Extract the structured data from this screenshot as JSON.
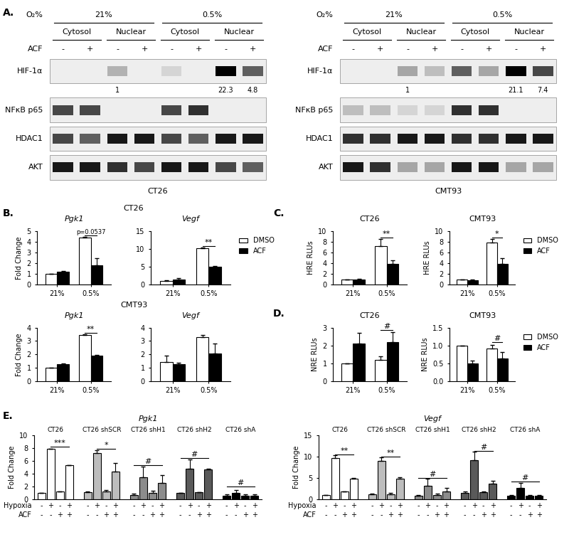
{
  "chart_data": [
    {
      "type": "western_blot",
      "panel": "A.",
      "header_label": "O₂%",
      "conditions": [
        "21%",
        "0.5%"
      ],
      "fractions": [
        "Cytosol",
        "Nuclear"
      ],
      "treatment_label": "ACF",
      "treatment_marks": [
        "-",
        "+"
      ],
      "rows": [
        {
          "name": "HIF-1α",
          "bands": [
            0,
            0,
            0.25,
            0,
            0.1,
            0,
            1.0,
            0.6
          ]
        },
        {
          "name": "NFκB p65",
          "bands": [
            0.7,
            0.7,
            0,
            0,
            0.7,
            0.8,
            0,
            0
          ]
        },
        {
          "name": "HDAC1",
          "bands": [
            0.7,
            0.6,
            0.9,
            0.9,
            0.7,
            0.6,
            0.9,
            0.9
          ]
        },
        {
          "name": "AKT",
          "bands": [
            0.9,
            0.9,
            0.8,
            0.7,
            0.9,
            0.9,
            0.7,
            0.6
          ]
        }
      ],
      "quantification": [
        null,
        null,
        1,
        null,
        null,
        null,
        22.3,
        4.8
      ],
      "cell_line": "CT26"
    },
    {
      "type": "western_blot",
      "header_label": "O₂%",
      "conditions": [
        "21%",
        "0.5%"
      ],
      "fractions": [
        "Cytosol",
        "Nuclear"
      ],
      "treatment_label": "ACF",
      "treatment_marks": [
        "-",
        "+"
      ],
      "rows": [
        {
          "name": "HIF-1α",
          "bands": [
            0,
            0,
            0.3,
            0.2,
            0.6,
            0.3,
            1.0,
            0.7
          ]
        },
        {
          "name": "NFκB p65",
          "bands": [
            0.2,
            0.2,
            0.1,
            0.1,
            0.8,
            0.8,
            0,
            0
          ]
        },
        {
          "name": "HDAC1",
          "bands": [
            0.8,
            0.8,
            0.9,
            0.9,
            0.8,
            0.8,
            0.9,
            0.9
          ]
        },
        {
          "name": "AKT",
          "bands": [
            0.9,
            0.8,
            0.3,
            0.3,
            0.9,
            0.9,
            0.3,
            0.3
          ]
        }
      ],
      "quantification": [
        null,
        null,
        1,
        null,
        null,
        null,
        21.1,
        7.4
      ],
      "cell_line": "CMT93"
    },
    {
      "type": "bar",
      "panel": "B.",
      "heading": "CT26",
      "title": "Pgk1",
      "y_label": "Fold Change",
      "categories": [
        "21%",
        "0.5%"
      ],
      "series": [
        {
          "name": "DMSO",
          "color": "#ffffff",
          "values": [
            1.0,
            4.4
          ],
          "errors": [
            0,
            0.05
          ]
        },
        {
          "name": "ACF",
          "color": "#000000",
          "values": [
            1.2,
            1.8
          ],
          "errors": [
            0.08,
            0.65
          ]
        }
      ],
      "ylim": [
        0,
        5
      ],
      "yticks": [
        0,
        1,
        2,
        3,
        4,
        5
      ],
      "annotations": [
        {
          "text": "p=0.0537",
          "category": 1,
          "y": 4.55
        }
      ]
    },
    {
      "type": "bar",
      "title": "Vegf",
      "categories": [
        "21%",
        "0.5%"
      ],
      "series": [
        {
          "name": "DMSO",
          "color": "#ffffff",
          "values": [
            1.1,
            10.1
          ],
          "errors": [
            0.2,
            0.3
          ]
        },
        {
          "name": "ACF",
          "color": "#000000",
          "values": [
            1.5,
            5.0
          ],
          "errors": [
            0.3,
            0.2
          ]
        }
      ],
      "ylim": [
        0,
        15
      ],
      "yticks": [
        0,
        5,
        10,
        15
      ],
      "legend": "right",
      "annotations": [
        {
          "text": "**",
          "category": 1,
          "y": 10.7
        }
      ]
    },
    {
      "type": "bar",
      "heading": "CMT93",
      "title": "Pgk1",
      "y_label": "Fold Change",
      "categories": [
        "21%",
        "0.5%"
      ],
      "series": [
        {
          "name": "DMSO",
          "color": "#ffffff",
          "values": [
            1.0,
            3.45
          ],
          "errors": [
            0,
            0.05
          ]
        },
        {
          "name": "ACF",
          "color": "#000000",
          "values": [
            1.3,
            1.9
          ],
          "errors": [
            0.03,
            0.08
          ]
        }
      ],
      "ylim": [
        0,
        4
      ],
      "yticks": [
        0,
        1,
        2,
        3,
        4
      ],
      "annotations": [
        {
          "text": "**",
          "category": 1,
          "y": 3.6
        }
      ]
    },
    {
      "type": "bar",
      "title": "Vegf",
      "categories": [
        "21%",
        "0.5%"
      ],
      "series": [
        {
          "name": "DMSO",
          "color": "#ffffff",
          "values": [
            1.45,
            3.3
          ],
          "errors": [
            0.45,
            0.12
          ]
        },
        {
          "name": "ACF",
          "color": "#000000",
          "values": [
            1.3,
            2.05
          ],
          "errors": [
            0.1,
            0.75
          ]
        }
      ],
      "ylim": [
        0,
        4
      ],
      "yticks": [
        0,
        1,
        2,
        3,
        4
      ]
    },
    {
      "type": "bar",
      "panel": "C.",
      "title": "CT26",
      "y_label": "HRE RLUs",
      "categories": [
        "21%",
        "0.5%"
      ],
      "series": [
        {
          "name": "DMSO",
          "color": "#ffffff",
          "values": [
            1.0,
            7.2
          ],
          "errors": [
            0,
            1.3
          ]
        },
        {
          "name": "ACF",
          "color": "#000000",
          "values": [
            1.0,
            3.9
          ],
          "errors": [
            0.1,
            0.6
          ]
        }
      ],
      "ylim": [
        0,
        10
      ],
      "yticks": [
        0,
        2,
        4,
        6,
        8,
        10
      ],
      "annotations": [
        {
          "text": "**",
          "category": 1,
          "y": 8.7
        }
      ]
    },
    {
      "type": "bar",
      "title": "CMT93",
      "y_label": "HRE RLUs",
      "categories": [
        "21%",
        "0.5%"
      ],
      "series": [
        {
          "name": "DMSO",
          "color": "#ffffff",
          "values": [
            1.0,
            7.9
          ],
          "errors": [
            0,
            0.6
          ]
        },
        {
          "name": "ACF",
          "color": "#000000",
          "values": [
            0.85,
            3.8
          ],
          "errors": [
            0.1,
            1.1
          ]
        }
      ],
      "ylim": [
        0,
        10
      ],
      "yticks": [
        0,
        2,
        4,
        6,
        8,
        10
      ],
      "legend": "right",
      "annotations": [
        {
          "text": "*",
          "category": 1,
          "y": 8.7
        }
      ]
    },
    {
      "type": "bar",
      "panel": "D.",
      "title": "CT26",
      "y_label": "NRE RLUs",
      "categories": [
        "21%",
        "0.5%"
      ],
      "series": [
        {
          "name": "DMSO",
          "color": "#ffffff",
          "values": [
            1.0,
            1.2
          ],
          "errors": [
            0,
            0.2
          ]
        },
        {
          "name": "ACF",
          "color": "#000000",
          "values": [
            2.1,
            2.2
          ],
          "errors": [
            0.6,
            0.55
          ]
        }
      ],
      "ylim": [
        0,
        3
      ],
      "yticks": [
        0,
        1,
        2,
        3
      ],
      "annotations": [
        {
          "text": "#",
          "category": 1,
          "y": 2.85
        }
      ]
    },
    {
      "type": "bar",
      "title": "CMT93",
      "y_label": "NRE RLUs",
      "categories": [
        "21%",
        "0.5%"
      ],
      "series": [
        {
          "name": "DMSO",
          "color": "#ffffff",
          "values": [
            1.0,
            0.92
          ],
          "errors": [
            0,
            0.1
          ]
        },
        {
          "name": "ACF",
          "color": "#000000",
          "values": [
            0.5,
            0.63
          ],
          "errors": [
            0.07,
            0.18
          ]
        }
      ],
      "ylim": [
        0,
        1.5
      ],
      "yticks": [
        {
          "value": 0,
          "label": "0.0"
        },
        0.5,
        {
          "value": 1,
          "label": "1.0"
        },
        1.5
      ],
      "legend": "right",
      "annotations": [
        {
          "text": "#",
          "category": 1,
          "y": 1.1
        }
      ]
    },
    {
      "type": "bar",
      "panel": "E.",
      "title": "Pgk1",
      "y_label": "Fold Change",
      "tick_labels": "y",
      "condition_rows": [
        {
          "label": "Hypoxia",
          "marks": [
            "-",
            "+",
            "-",
            "+"
          ]
        },
        {
          "label": "ACF",
          "marks": [
            "-",
            "-",
            "+",
            "+"
          ]
        }
      ],
      "groups": [
        {
          "name": "CT26",
          "color": "#ffffff",
          "values": [
            1.0,
            7.8,
            1.2,
            5.3
          ],
          "errors": [
            0,
            0.05,
            0.05,
            0.05
          ]
        },
        {
          "name": "CT26 shSCR",
          "color": "#bdbdbd",
          "values": [
            1.1,
            7.2,
            1.2,
            4.3
          ],
          "errors": [
            0.1,
            0.4,
            0.2,
            1.3
          ]
        },
        {
          "name": "CT26 shH1",
          "color": "#8c8c8c",
          "values": [
            0.7,
            3.4,
            1.0,
            2.6
          ],
          "errors": [
            0.15,
            1.7,
            0.3,
            1.2
          ]
        },
        {
          "name": "CT26 shH2",
          "color": "#5a5a5a",
          "values": [
            1.0,
            4.8,
            1.1,
            4.6
          ],
          "errors": [
            0.05,
            1.4,
            0.05,
            0.2
          ]
        },
        {
          "name": "CT26 shA",
          "color": "#000000",
          "values": [
            0.6,
            1.0,
            0.6,
            0.6
          ],
          "errors": [
            0.2,
            0.4,
            0.2,
            0.2
          ]
        }
      ],
      "ylim": [
        0,
        10
      ],
      "yticks": [
        0,
        2,
        4,
        6,
        8,
        10
      ],
      "annotations": [
        {
          "text": "***",
          "group": 0,
          "from": 1,
          "to": 3,
          "y": 8.2
        },
        {
          "text": "*",
          "group": 1,
          "from": 1,
          "to": 3,
          "y": 7.8
        },
        {
          "text": "#",
          "group": 2,
          "from": 0,
          "to": 3,
          "y": 5.3
        },
        {
          "text": "#",
          "group": 3,
          "from": 0,
          "to": 3,
          "y": 6.4
        },
        {
          "text": "#",
          "group": 4,
          "from": 0,
          "to": 3,
          "y": 2.0
        }
      ]
    },
    {
      "type": "bar",
      "title": "Vegf",
      "y_label": "Fold Change",
      "tick_labels": "y",
      "condition_rows": [
        {
          "label": "Hypoxia",
          "marks": [
            "-",
            "+",
            "-",
            "+"
          ]
        },
        {
          "label": "ACF",
          "marks": [
            "-",
            "-",
            "+",
            "+"
          ]
        }
      ],
      "groups": [
        {
          "name": "CT26",
          "color": "#ffffff",
          "values": [
            1.0,
            9.7,
            1.8,
            4.9
          ],
          "errors": [
            0,
            0.6,
            0.1,
            0.1
          ]
        },
        {
          "name": "CT26 shSCR",
          "color": "#bdbdbd",
          "values": [
            1.2,
            8.9,
            1.2,
            4.8
          ],
          "errors": [
            0.2,
            0.9,
            0.3,
            0.4
          ]
        },
        {
          "name": "CT26 shH1",
          "color": "#8c8c8c",
          "values": [
            0.8,
            3.2,
            1.0,
            1.9
          ],
          "errors": [
            0.2,
            1.6,
            0.4,
            0.8
          ]
        },
        {
          "name": "CT26 shH2",
          "color": "#5a5a5a",
          "values": [
            1.5,
            9.2,
            1.7,
            3.7
          ],
          "errors": [
            0.3,
            1.9,
            0.2,
            0.7
          ]
        },
        {
          "name": "CT26 shA",
          "color": "#000000",
          "values": [
            0.8,
            2.6,
            0.8,
            0.8
          ],
          "errors": [
            0.3,
            1.3,
            0.3,
            0.3
          ]
        }
      ],
      "ylim": [
        0,
        15
      ],
      "yticks": [
        0,
        5,
        10,
        15
      ],
      "annotations": [
        {
          "text": "**",
          "group": 0,
          "from": 1,
          "to": 3,
          "y": 10.5
        },
        {
          "text": "**",
          "group": 1,
          "from": 1,
          "to": 3,
          "y": 10.0
        },
        {
          "text": "#",
          "group": 2,
          "from": 0,
          "to": 3,
          "y": 5.0
        },
        {
          "text": "#",
          "group": 3,
          "from": 1,
          "to": 3,
          "y": 11.3
        },
        {
          "text": "#",
          "group": 4,
          "from": 0,
          "to": 3,
          "y": 4.2
        }
      ]
    }
  ]
}
